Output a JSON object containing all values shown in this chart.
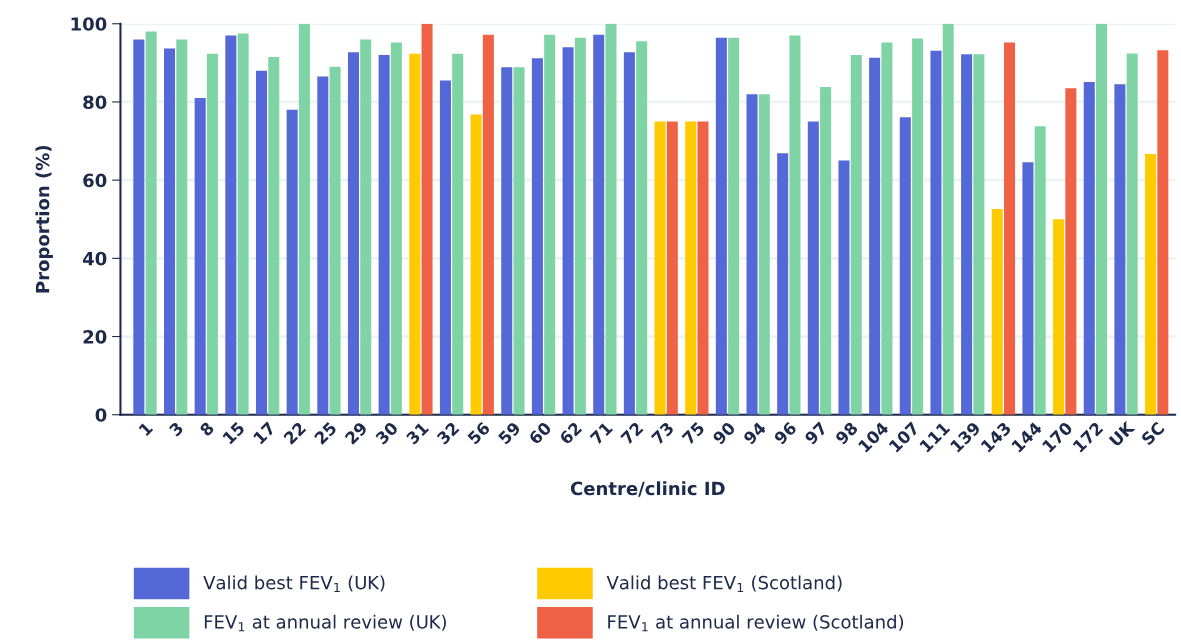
{
  "chart_data": {
    "type": "bar",
    "xlabel": "Centre/clinic ID",
    "ylabel": "Proportion (%)",
    "categories": [
      "1",
      "3",
      "8",
      "15",
      "17",
      "22",
      "25",
      "29",
      "30",
      "31",
      "32",
      "56",
      "59",
      "60",
      "62",
      "71",
      "72",
      "73",
      "75",
      "90",
      "94",
      "96",
      "97",
      "98",
      "104",
      "107",
      "111",
      "139",
      "143",
      "144",
      "170",
      "172",
      "UK",
      "SC"
    ],
    "series": [
      {
        "name": "Valid best FEV$_{1}$ (UK)",
        "color": "#5468d8",
        "values": [
          96,
          93.7,
          81,
          97,
          88,
          78,
          86.5,
          92.7,
          92,
          null,
          85.5,
          null,
          88.9,
          91.2,
          94,
          97.2,
          92.7,
          null,
          null,
          96.4,
          82,
          66.9,
          75,
          65,
          91.3,
          76.1,
          93.1,
          92.2,
          null,
          64.6,
          null,
          85.1,
          84.5,
          null
        ]
      },
      {
        "name": "FEV$_{1}$ at annual review (UK)",
        "color": "#7fd4a6",
        "values": [
          98,
          96,
          92.3,
          97.5,
          91.5,
          100,
          89,
          96,
          95.2,
          null,
          92.3,
          null,
          88.9,
          97.2,
          96.4,
          100,
          95.5,
          null,
          null,
          96.4,
          82,
          97,
          83.8,
          92,
          95.2,
          96.2,
          100,
          92.2,
          null,
          73.8,
          null,
          100,
          92.4,
          null
        ]
      },
      {
        "name": "Valid best FEV$_{1}$ (Scotland)",
        "color": "#ffcb00",
        "values": [
          null,
          null,
          null,
          null,
          null,
          null,
          null,
          null,
          null,
          92.3,
          null,
          76.8,
          null,
          null,
          null,
          null,
          null,
          75,
          75,
          null,
          null,
          null,
          null,
          null,
          null,
          null,
          null,
          null,
          52.6,
          null,
          50,
          null,
          null,
          66.7
        ]
      },
      {
        "name": "FEV$_{1}$ at annual review (Scotland)",
        "color": "#ef6245",
        "values": [
          null,
          null,
          null,
          null,
          null,
          null,
          null,
          null,
          null,
          100,
          null,
          97.2,
          null,
          null,
          null,
          null,
          null,
          75,
          75,
          null,
          null,
          null,
          null,
          null,
          null,
          null,
          null,
          null,
          95.2,
          null,
          83.5,
          null,
          null,
          93.2
        ]
      }
    ],
    "ylim": [
      0,
      100
    ],
    "yticks": [
      0,
      20,
      40,
      60,
      80,
      100
    ],
    "grid": "y",
    "legend": "bottom"
  }
}
